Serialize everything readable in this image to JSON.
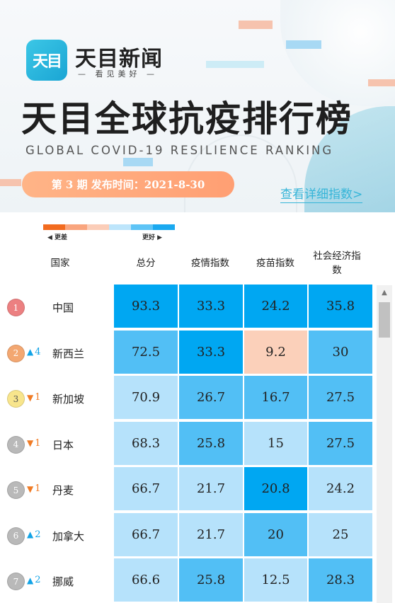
{
  "banner": {
    "logo_text": "天目",
    "brand_name": "天目新闻",
    "slogan": "— 看见美好 —",
    "title": "天目全球抗疫排行榜",
    "subtitle": "GLOBAL COVID-19 RESILIENCE RANKING",
    "issue": "第 3 期 发布时间：2021-8-30",
    "detail_link": "查看详细指数>"
  },
  "legend": {
    "worse": "◀ 更差",
    "better": "更好 ▶",
    "colors": [
      "#f26b1f",
      "#f9a57e",
      "#fbcdb8",
      "#bde5fb",
      "#5ec4f6",
      "#1aa9f0"
    ]
  },
  "columns": {
    "country": "国家",
    "total": "总分",
    "epidemic": "疫情指数",
    "vaccine": "疫苗指数",
    "economy": "社会经济指数"
  },
  "colors": {
    "darkest_blue": "#00a7f2",
    "mid_blue": "#52bff5",
    "light_blue": "#b6e2fb",
    "peach": "#fbd0ba",
    "up_arrow": "#12a3e6",
    "down_arrow": "#f07b25"
  },
  "rows": [
    {
      "rank": "1",
      "change": "",
      "direction": "",
      "country": "中国",
      "total": "93.3",
      "epidemic": "33.3",
      "vaccine": "24.2",
      "economy": "35.8",
      "rank_color": "#ec8081",
      "colors": [
        "#00a7f2",
        "#00a7f2",
        "#00a7f2",
        "#00a7f2"
      ]
    },
    {
      "rank": "2",
      "change": "4",
      "direction": "up",
      "country": "新西兰",
      "total": "72.5",
      "epidemic": "33.3",
      "vaccine": "9.2",
      "economy": "30",
      "rank_color": "#f3a771",
      "colors": [
        "#52bff5",
        "#00a7f2",
        "#fbd0ba",
        "#52bff5"
      ]
    },
    {
      "rank": "3",
      "change": "1",
      "direction": "down",
      "country": "新加坡",
      "total": "70.9",
      "epidemic": "26.7",
      "vaccine": "16.7",
      "economy": "27.5",
      "rank_color": "#f8e58c",
      "colors": [
        "#b6e2fb",
        "#52bff5",
        "#52bff5",
        "#52bff5"
      ]
    },
    {
      "rank": "4",
      "change": "1",
      "direction": "down",
      "country": "日本",
      "total": "68.3",
      "epidemic": "25.8",
      "vaccine": "15",
      "economy": "27.5",
      "rank_color": "#b9b9b9",
      "colors": [
        "#b6e2fb",
        "#52bff5",
        "#b6e2fb",
        "#52bff5"
      ]
    },
    {
      "rank": "5",
      "change": "1",
      "direction": "down",
      "country": "丹麦",
      "total": "66.7",
      "epidemic": "21.7",
      "vaccine": "20.8",
      "economy": "24.2",
      "rank_color": "#b9b9b9",
      "colors": [
        "#b6e2fb",
        "#b6e2fb",
        "#00a7f2",
        "#b6e2fb"
      ]
    },
    {
      "rank": "6",
      "change": "2",
      "direction": "up",
      "country": "加拿大",
      "total": "66.7",
      "epidemic": "21.7",
      "vaccine": "20",
      "economy": "25",
      "rank_color": "#b9b9b9",
      "colors": [
        "#b6e2fb",
        "#b6e2fb",
        "#52bff5",
        "#b6e2fb"
      ]
    },
    {
      "rank": "7",
      "change": "2",
      "direction": "up",
      "country": "挪威",
      "total": "66.6",
      "epidemic": "25.8",
      "vaccine": "12.5",
      "economy": "28.3",
      "rank_color": "#b9b9b9",
      "colors": [
        "#b6e2fb",
        "#52bff5",
        "#b6e2fb",
        "#52bff5"
      ]
    }
  ]
}
